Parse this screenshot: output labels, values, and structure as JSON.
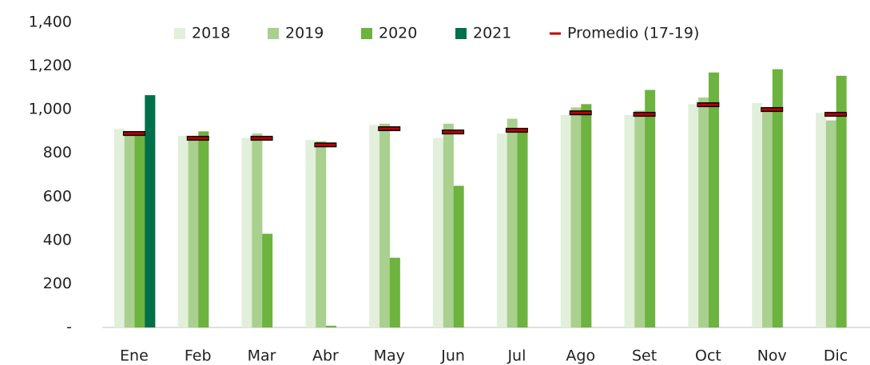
{
  "chart_data": {
    "type": "bar",
    "categories": [
      "Ene",
      "Feb",
      "Mar",
      "Abr",
      "May",
      "Jun",
      "Jul",
      "Ago",
      "Set",
      "Oct",
      "Nov",
      "Dic"
    ],
    "series": [
      {
        "name": "2018",
        "color": "#e2efda",
        "values": [
          912,
          880,
          870,
          860,
          930,
          870,
          890,
          975,
          975,
          1025,
          1030,
          985
        ]
      },
      {
        "name": "2019",
        "color": "#a9d08e",
        "values": [
          890,
          865,
          890,
          855,
          935,
          935,
          958,
          1010,
          995,
          1055,
          1000,
          950
        ]
      },
      {
        "name": "2020",
        "color": "#6db33f",
        "values": [
          890,
          900,
          430,
          8,
          320,
          650,
          912,
          1025,
          1090,
          1170,
          1185,
          1155
        ]
      },
      {
        "name": "2021",
        "color": "#00704a",
        "values": [
          1066,
          null,
          null,
          null,
          null,
          null,
          null,
          null,
          null,
          null,
          null,
          null
        ]
      },
      {
        "name": "Promedio (17-19)",
        "color": "#c00000",
        "mark": "line",
        "values": [
          890,
          868,
          868,
          838,
          912,
          897,
          905,
          985,
          978,
          1022,
          1000,
          978
        ]
      }
    ],
    "ylim": [
      0,
      1400
    ],
    "yticks": [
      {
        "value": 0,
        "label": "-"
      },
      200,
      400,
      600,
      800,
      {
        "value": 1000,
        "label": "1,000"
      },
      {
        "value": 1200,
        "label": "1,200"
      },
      {
        "value": 1400,
        "label": "1,400"
      }
    ],
    "grid": false,
    "legend": "top"
  }
}
